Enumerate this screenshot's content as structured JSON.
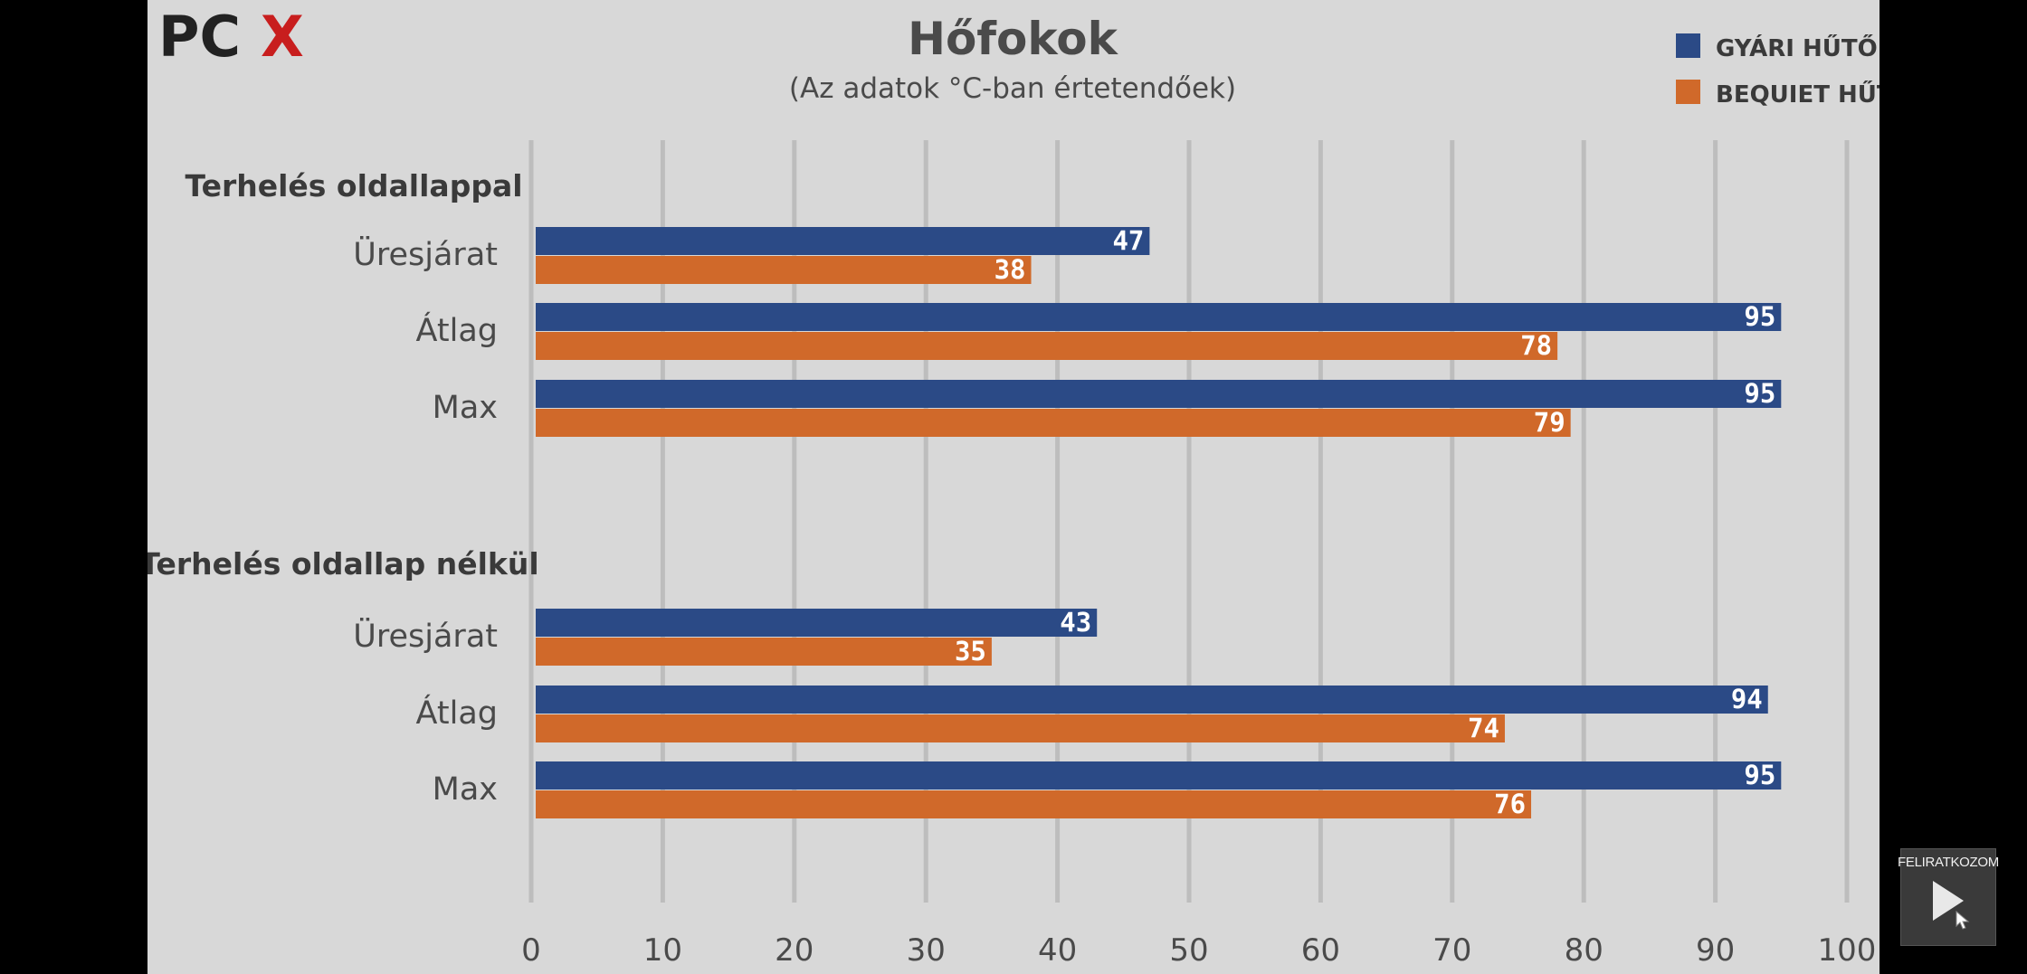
{
  "chart_data": {
    "type": "bar",
    "orientation": "horizontal",
    "title": "Hőfokok",
    "subtitle": "(Az adatok °C-ban értetendőek)",
    "groups": [
      {
        "label": "Terhelés oldallappal",
        "categories": [
          "Üresjárat",
          "Átlag",
          "Max"
        ],
        "series": [
          {
            "name": "GYÁRI HŰTŐ",
            "values": [
              47,
              95,
              95
            ]
          },
          {
            "name": "BEQUIET HŰTŐ",
            "values": [
              38,
              78,
              79
            ]
          }
        ]
      },
      {
        "label": "Terhelés oldallap nélkül",
        "categories": [
          "Üresjárat",
          "Átlag",
          "Max"
        ],
        "series": [
          {
            "name": "GYÁRI HŰTŐ",
            "values": [
              43,
              94,
              95
            ]
          },
          {
            "name": "BEQUIET HŰTŐ",
            "values": [
              35,
              74,
              76
            ]
          }
        ]
      }
    ],
    "xlim": [
      0,
      100
    ],
    "xticks": [
      0,
      10,
      20,
      30,
      40,
      50,
      60,
      70,
      80,
      90,
      100
    ],
    "grid": true,
    "legend": "top-right",
    "colors": {
      "GYÁRI HŰTŐ": "#2b4a86",
      "BEQUIET HŰTŐ": "#d0692a"
    }
  },
  "logo": {
    "text_a": "PC",
    "text_b": "X"
  },
  "subscribe": {
    "label": "FELIRATKOZOM",
    "icon": "play-cursor-icon"
  }
}
